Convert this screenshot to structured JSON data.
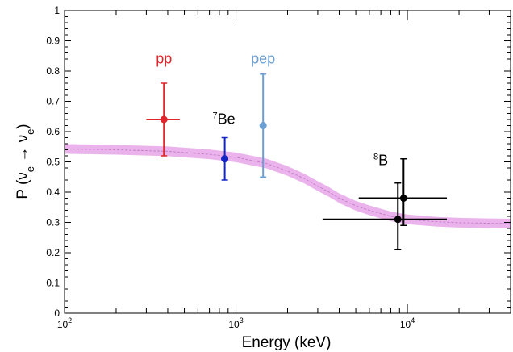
{
  "chart_data": {
    "type": "scatter",
    "title": "",
    "xlabel": "Energy (keV)",
    "ylabel": {
      "prefix": "P (",
      "nu1": "ν",
      "sub1": "e",
      "arrow": " → ",
      "nu2": "ν",
      "sub2": "e",
      "suffix": ")"
    },
    "xscale": "log",
    "xlim": [
      100,
      40000
    ],
    "ylim": [
      0,
      1
    ],
    "grid": false,
    "x_ticks": [
      {
        "value": 100,
        "base": "10",
        "exp": "2"
      },
      {
        "value": 1000,
        "base": "10",
        "exp": "3"
      },
      {
        "value": 10000,
        "base": "10",
        "exp": "4"
      }
    ],
    "y_ticks": [
      "0",
      "0.1",
      "0.2",
      "0.3",
      "0.4",
      "0.5",
      "0.6",
      "0.7",
      "0.8",
      "0.9",
      "1"
    ],
    "band": {
      "color": "#e6a6e9",
      "x": [
        100,
        200,
        400,
        700,
        1000,
        1500,
        2000,
        2500,
        3000,
        3500,
        4000,
        5000,
        6000,
        8000,
        10000,
        15000,
        20000,
        30000,
        40000
      ],
      "y": [
        0.543,
        0.54,
        0.535,
        0.525,
        0.515,
        0.495,
        0.47,
        0.445,
        0.42,
        0.4,
        0.38,
        0.355,
        0.34,
        0.32,
        0.31,
        0.302,
        0.299,
        0.297,
        0.296
      ],
      "half_width": 0.016
    },
    "series": [
      {
        "label": "pp",
        "color": "#e0262b",
        "x": 380,
        "y": 0.64,
        "y_err": [
          0.52,
          0.76
        ],
        "x_err": [
          300,
          470
        ],
        "label_pos": {
          "x": 380,
          "y": 0.825
        }
      },
      {
        "label": "Be",
        "sup": "7",
        "color": "#1326c4",
        "x": 860,
        "y": 0.51,
        "y_err": [
          0.44,
          0.58
        ],
        "x_err": [
          820,
          900
        ],
        "label_pos": {
          "x": 850,
          "y": 0.625
        }
      },
      {
        "label": "pep",
        "color": "#6b9ed2",
        "x": 1440,
        "y": 0.62,
        "y_err": [
          0.45,
          0.79
        ],
        "x_err": [
          1420,
          1460
        ],
        "label_pos": {
          "x": 1440,
          "y": 0.825
        }
      },
      {
        "label": "B",
        "sup": "8",
        "color": "#000000",
        "x": 9500,
        "y": 0.38,
        "y_err": [
          0.29,
          0.51
        ],
        "x_err": [
          5200,
          17000
        ],
        "label_pos": {
          "x": 7000,
          "y": 0.49
        }
      },
      {
        "label": "",
        "color": "#000000",
        "x": 8800,
        "y": 0.31,
        "y_err": [
          0.21,
          0.43
        ],
        "x_err": [
          3200,
          17000
        ]
      }
    ]
  }
}
